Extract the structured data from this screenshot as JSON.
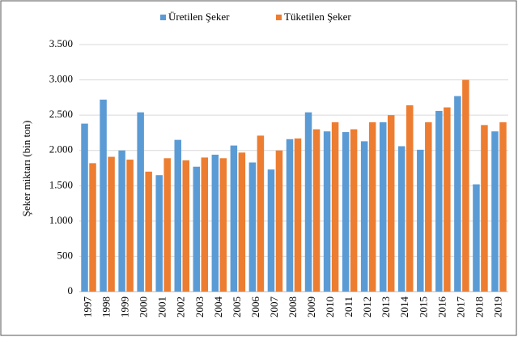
{
  "chart_data": {
    "type": "bar",
    "y_label": "Şeker miktarı (bin ton)",
    "categories": [
      "1997",
      "1998",
      "1999",
      "2000",
      "2001",
      "2002",
      "2003",
      "2004",
      "2005",
      "2006",
      "2007",
      "2008",
      "2009",
      "2010",
      "2011",
      "2012",
      "2013",
      "2014",
      "2015",
      "2016",
      "2017",
      "2018",
      "2019"
    ],
    "series": [
      {
        "name": "Üretilen Şeker",
        "color": "#5b9bd5",
        "values": [
          2380,
          2720,
          2000,
          2540,
          1650,
          2150,
          1770,
          1940,
          2070,
          1830,
          1730,
          2160,
          2540,
          2270,
          2260,
          2130,
          2400,
          2060,
          2010,
          2560,
          2770,
          1520,
          2270
        ]
      },
      {
        "name": "Tüketilen Şeker",
        "color": "#ed7d31",
        "values": [
          1820,
          1910,
          1870,
          1700,
          1890,
          1860,
          1900,
          1890,
          1970,
          2210,
          2000,
          2170,
          2300,
          2400,
          2300,
          2400,
          2500,
          2640,
          2400,
          2610,
          3000,
          2360,
          2400
        ]
      }
    ],
    "ylim": [
      0,
      3500
    ],
    "yticks": [
      0,
      500,
      {
        "value": 1000,
        "label": "1.000"
      },
      {
        "value": 1500,
        "label": "1.500"
      },
      {
        "value": 2000,
        "label": "2.000"
      },
      {
        "value": 2500,
        "label": "2.500"
      },
      {
        "value": 3000,
        "label": "3.000"
      },
      {
        "value": 3500,
        "label": "3.500"
      }
    ],
    "grid": true,
    "legend": "top"
  }
}
